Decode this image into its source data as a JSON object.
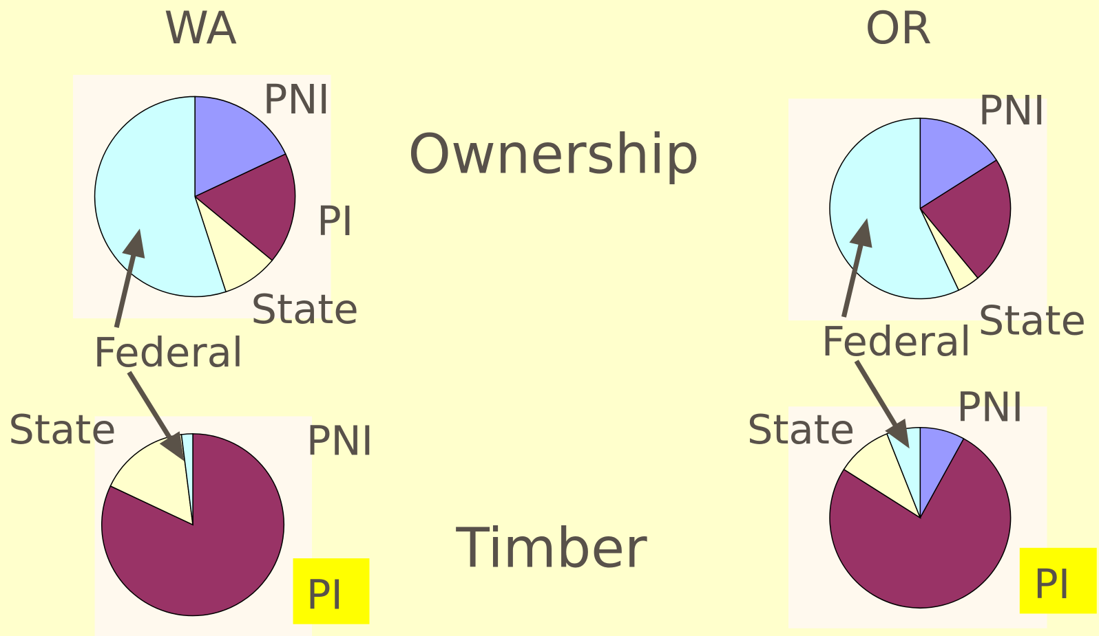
{
  "columns": [
    "WA",
    "OR"
  ],
  "rows": [
    "Ownership",
    "Timber"
  ],
  "chart_data": [
    {
      "type": "pie",
      "categories": [
        "PNI",
        "PI",
        "State",
        "Federal"
      ],
      "values": [
        18,
        18,
        9,
        55
      ],
      "colors": [
        "#9999ff",
        "#993366",
        "#ffffcc",
        "#ccffff"
      ]
    },
    {
      "type": "pie",
      "categories": [
        "PNI",
        null,
        "State",
        "Federal"
      ],
      "values": [
        16,
        23,
        4,
        57
      ],
      "colors": [
        "#9999ff",
        "#993366",
        "#ffffcc",
        "#ccffff"
      ]
    },
    {
      "type": "pie",
      "categories": [
        "PNI",
        "PI",
        "State",
        null
      ],
      "values": [
        0,
        82,
        16,
        2
      ],
      "colors": [
        "#9999ff",
        "#993366",
        "#ffffcc",
        "#ccffff"
      ]
    },
    {
      "type": "pie",
      "categories": [
        "PNI",
        "PI",
        "State",
        null
      ],
      "values": [
        8,
        76,
        10,
        6
      ],
      "colors": [
        "#9999ff",
        "#993366",
        "#ffffcc",
        "#ccffff"
      ]
    }
  ]
}
